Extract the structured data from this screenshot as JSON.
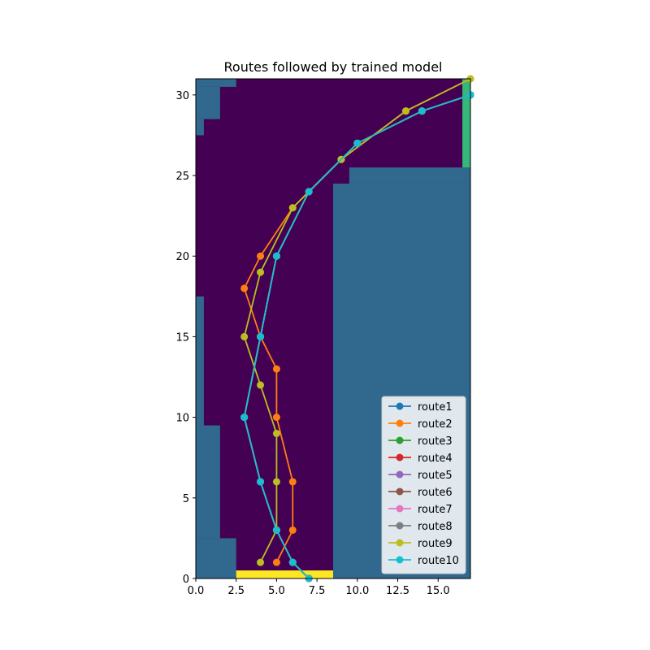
{
  "chart_data": {
    "type": "line",
    "title": "Routes followed by trained model",
    "xlabel": "",
    "ylabel": "",
    "xlim": [
      0,
      17
    ],
    "ylim": [
      0,
      31
    ],
    "xticks": [
      0.0,
      2.5,
      5.0,
      7.5,
      10.0,
      12.5,
      15.0
    ],
    "xtick_labels": [
      "0.0",
      "2.5",
      "5.0",
      "7.5",
      "10.0",
      "12.5",
      "15.0"
    ],
    "yticks": [
      0,
      5,
      10,
      15,
      20,
      25,
      30
    ],
    "ytick_labels": [
      "0",
      "5",
      "10",
      "15",
      "20",
      "25",
      "30"
    ],
    "grid": false,
    "legend_position": "lower-right",
    "background_grid": {
      "description_colors": {
        "track": "#440154",
        "wall": "#31688e",
        "start": "#fde725",
        "finish": "#35b779"
      },
      "wall_cells": [
        [
          0,
          0,
          2.5,
          2.5
        ],
        [
          0,
          2.5,
          1.5,
          9.5
        ],
        [
          0,
          9.5,
          0.5,
          17.5
        ],
        [
          0,
          27.5,
          0.5,
          28.5
        ],
        [
          0,
          28.5,
          1.5,
          30.5
        ],
        [
          0,
          30.5,
          2.5,
          31
        ],
        [
          8.5,
          0,
          17,
          24.5
        ],
        [
          9.5,
          24.5,
          17,
          25.5
        ]
      ],
      "start_cells": [
        [
          2.5,
          0,
          8.5,
          0.5
        ]
      ],
      "finish_cells": [
        [
          16.5,
          25.5,
          17,
          31
        ]
      ]
    },
    "series": [
      {
        "name": "route1",
        "color": "#1f77b4",
        "points": [
          [
            7,
            0
          ],
          [
            6,
            1
          ],
          [
            5,
            3
          ],
          [
            4,
            6
          ],
          [
            3,
            10
          ],
          [
            4,
            15
          ],
          [
            5,
            20
          ],
          [
            7,
            24
          ],
          [
            10,
            27
          ],
          [
            14,
            29
          ],
          [
            17,
            30
          ]
        ]
      },
      {
        "name": "route2",
        "color": "#ff7f0e",
        "points": [
          [
            5,
            1
          ],
          [
            6,
            3
          ],
          [
            6,
            6
          ],
          [
            5,
            10
          ],
          [
            5,
            13
          ],
          [
            4,
            15
          ],
          [
            3,
            18
          ],
          [
            4,
            20
          ],
          [
            6,
            23
          ],
          [
            9,
            26
          ],
          [
            13,
            29
          ],
          [
            17,
            31
          ]
        ]
      },
      {
        "name": "route3",
        "color": "#2ca02c",
        "points": [
          [
            7,
            0
          ],
          [
            6,
            1
          ],
          [
            5,
            3
          ],
          [
            4,
            6
          ],
          [
            3,
            10
          ],
          [
            4,
            15
          ],
          [
            5,
            20
          ],
          [
            7,
            24
          ],
          [
            10,
            27
          ],
          [
            14,
            29
          ],
          [
            17,
            30
          ]
        ]
      },
      {
        "name": "route4",
        "color": "#d62728",
        "points": [
          [
            7,
            0
          ],
          [
            6,
            1
          ],
          [
            5,
            3
          ],
          [
            4,
            6
          ],
          [
            3,
            10
          ],
          [
            4,
            15
          ],
          [
            5,
            20
          ],
          [
            7,
            24
          ],
          [
            10,
            27
          ],
          [
            14,
            29
          ],
          [
            17,
            30
          ]
        ]
      },
      {
        "name": "route5",
        "color": "#9467bd",
        "points": [
          [
            7,
            0
          ],
          [
            6,
            1
          ],
          [
            5,
            3
          ],
          [
            4,
            6
          ],
          [
            3,
            10
          ],
          [
            4,
            15
          ],
          [
            5,
            20
          ],
          [
            7,
            24
          ],
          [
            10,
            27
          ],
          [
            14,
            29
          ],
          [
            17,
            30
          ]
        ]
      },
      {
        "name": "route6",
        "color": "#8c564b",
        "points": [
          [
            7,
            0
          ],
          [
            6,
            1
          ],
          [
            5,
            3
          ],
          [
            4,
            6
          ],
          [
            3,
            10
          ],
          [
            4,
            15
          ],
          [
            5,
            20
          ],
          [
            7,
            24
          ],
          [
            10,
            27
          ],
          [
            14,
            29
          ],
          [
            17,
            30
          ]
        ]
      },
      {
        "name": "route7",
        "color": "#e377c2",
        "points": [
          [
            7,
            0
          ],
          [
            6,
            1
          ],
          [
            5,
            3
          ],
          [
            4,
            6
          ],
          [
            3,
            10
          ],
          [
            4,
            15
          ],
          [
            5,
            20
          ],
          [
            7,
            24
          ],
          [
            10,
            27
          ],
          [
            14,
            29
          ],
          [
            17,
            30
          ]
        ]
      },
      {
        "name": "route8",
        "color": "#7f7f7f",
        "points": [
          [
            7,
            0
          ],
          [
            6,
            1
          ],
          [
            5,
            3
          ],
          [
            4,
            6
          ],
          [
            3,
            10
          ],
          [
            4,
            15
          ],
          [
            5,
            20
          ],
          [
            7,
            24
          ],
          [
            10,
            27
          ],
          [
            14,
            29
          ],
          [
            17,
            30
          ]
        ]
      },
      {
        "name": "route9",
        "color": "#bcbd22",
        "points": [
          [
            4,
            1
          ],
          [
            5,
            3
          ],
          [
            5,
            6
          ],
          [
            5,
            9
          ],
          [
            4,
            12
          ],
          [
            3,
            15
          ],
          [
            4,
            19
          ],
          [
            6,
            23
          ],
          [
            9,
            26
          ],
          [
            13,
            29
          ],
          [
            17,
            31
          ]
        ]
      },
      {
        "name": "route10",
        "color": "#17becf",
        "points": [
          [
            7,
            0
          ],
          [
            6,
            1
          ],
          [
            5,
            3
          ],
          [
            4,
            6
          ],
          [
            3,
            10
          ],
          [
            4,
            15
          ],
          [
            5,
            20
          ],
          [
            7,
            24
          ],
          [
            10,
            27
          ],
          [
            14,
            29
          ],
          [
            17,
            30
          ]
        ]
      }
    ]
  }
}
